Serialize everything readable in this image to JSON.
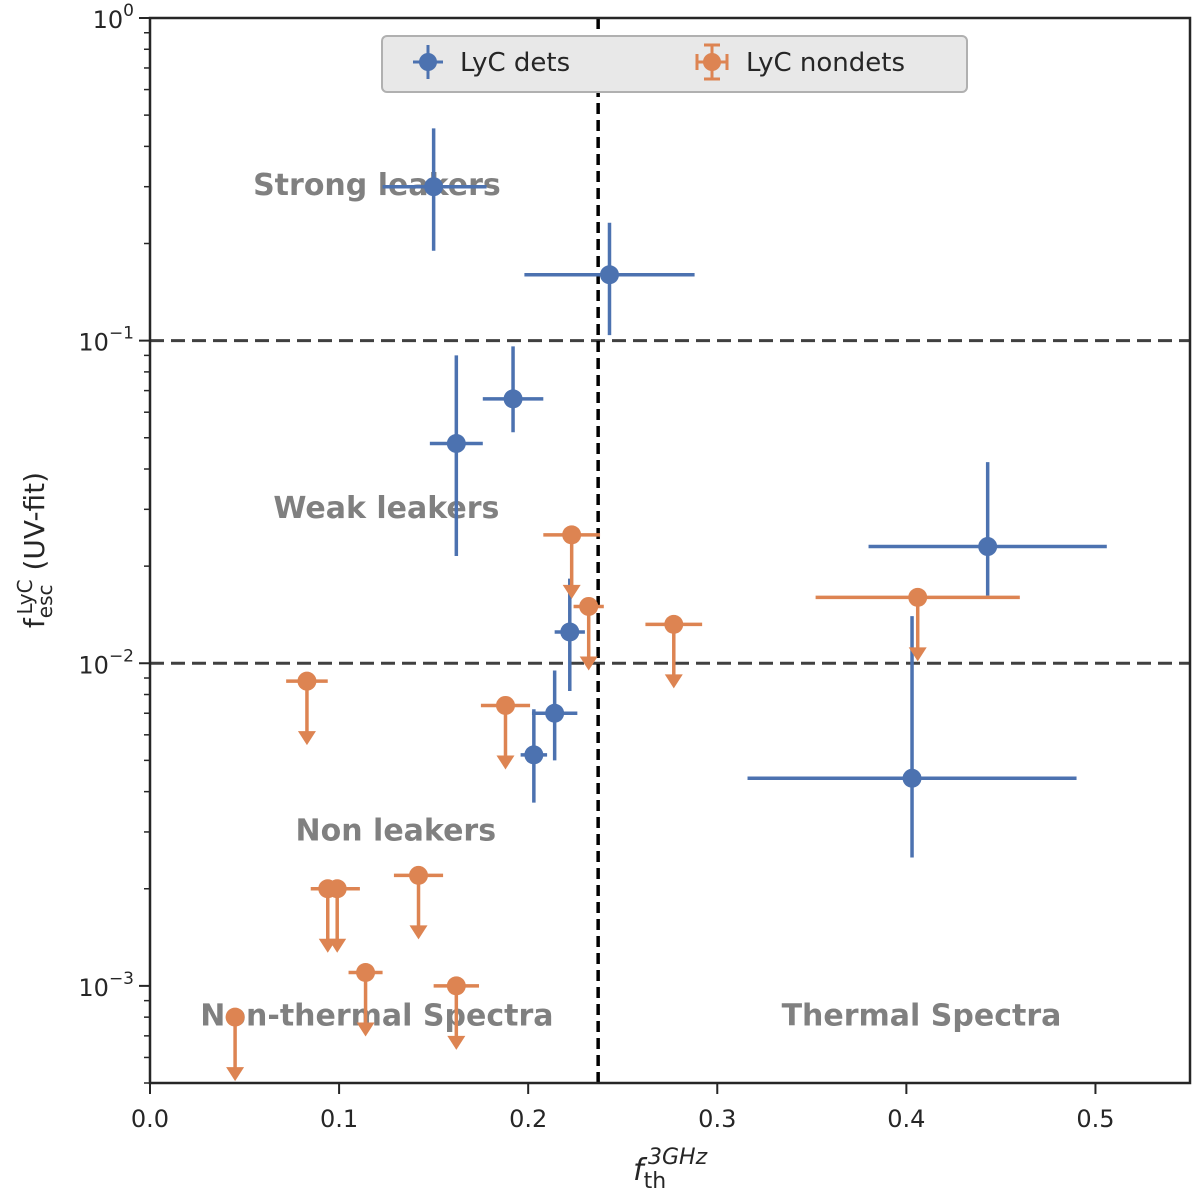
{
  "chart_data": {
    "type": "scatter",
    "xlabel": {
      "main": "f",
      "sub": "th",
      "sup": "3GHz"
    },
    "ylabel": {
      "main": "f",
      "sub": "esc",
      "sup": "LyC",
      "suffix": " (UV-fit)"
    },
    "xlim": [
      0.0,
      0.55
    ],
    "ylim": [
      0.0005,
      1.0
    ],
    "yscale": "log",
    "xticks": [
      {
        "value": 0.0,
        "label": "0.0"
      },
      {
        "value": 0.1,
        "label": "0.1"
      },
      {
        "value": 0.2,
        "label": "0.2"
      },
      {
        "value": 0.3,
        "label": "0.3"
      },
      {
        "value": 0.4,
        "label": "0.4"
      },
      {
        "value": 0.5,
        "label": "0.5"
      }
    ],
    "yticks": [
      {
        "value": 1.0,
        "base": "10",
        "exp": "0"
      },
      {
        "value": 0.1,
        "base": "10",
        "exp": "−1"
      },
      {
        "value": 0.01,
        "base": "10",
        "exp": "−2"
      },
      {
        "value": 0.001,
        "base": "10",
        "exp": "−3"
      }
    ],
    "hlines": [
      0.1,
      0.01
    ],
    "vlines": [
      0.237
    ],
    "colors": {
      "dets": "#4c72b0",
      "nondets": "#dd8452",
      "guide": "#404040",
      "region_text": "#808080"
    },
    "regions": [
      {
        "text": "Strong leakers",
        "x": 0.12,
        "y": 0.3
      },
      {
        "text": "Weak leakers",
        "x": 0.125,
        "y": 0.03
      },
      {
        "text": "Non leakers",
        "x": 0.13,
        "y": 0.003
      },
      {
        "text": "Non-thermal Spectra",
        "x": 0.12,
        "y": 0.0008
      },
      {
        "text": "Thermal Spectra",
        "x": 0.408,
        "y": 0.0008
      }
    ],
    "legend": {
      "position": "upper center",
      "entries": [
        "LyC dets",
        "LyC nondets"
      ]
    },
    "series": [
      {
        "name": "LyC dets",
        "kind": "detection",
        "points": [
          {
            "x": 0.15,
            "y": 0.3,
            "xerr": [
              0.027,
              0.028
            ],
            "yerr": [
              0.11,
              0.155
            ]
          },
          {
            "x": 0.243,
            "y": 0.16,
            "xerr": [
              0.045,
              0.045
            ],
            "yerr": [
              0.056,
              0.072
            ]
          },
          {
            "x": 0.192,
            "y": 0.066,
            "xerr": [
              0.016,
              0.016
            ],
            "yerr": [
              0.014,
              0.03
            ]
          },
          {
            "x": 0.162,
            "y": 0.048,
            "xerr": [
              0.014,
              0.014
            ],
            "yerr": [
              0.0265,
              0.042
            ]
          },
          {
            "x": 0.443,
            "y": 0.023,
            "xerr": [
              0.063,
              0.063
            ],
            "yerr": [
              0.0068,
              0.019
            ]
          },
          {
            "x": 0.222,
            "y": 0.0125,
            "xerr": [
              0.008,
              0.008
            ],
            "yerr": [
              0.0043,
              0.0058
            ]
          },
          {
            "x": 0.214,
            "y": 0.007,
            "xerr": [
              0.012,
              0.012
            ],
            "yerr": [
              0.002,
              0.0025
            ]
          },
          {
            "x": 0.203,
            "y": 0.0052,
            "xerr": [
              0.007,
              0.007
            ],
            "yerr": [
              0.0015,
              0.002
            ]
          },
          {
            "x": 0.403,
            "y": 0.0044,
            "xerr": [
              0.087,
              0.087
            ],
            "yerr": [
              0.0019,
              0.0096
            ]
          }
        ]
      },
      {
        "name": "LyC nondets",
        "kind": "upper-limit",
        "points": [
          {
            "x": 0.223,
            "y": 0.025,
            "xerr": [
              0.015,
              0.015
            ]
          },
          {
            "x": 0.232,
            "y": 0.015,
            "xerr": [
              0.008,
              0.008
            ]
          },
          {
            "x": 0.277,
            "y": 0.0132,
            "xerr": [
              0.015,
              0.015
            ]
          },
          {
            "x": 0.406,
            "y": 0.016,
            "xerr": [
              0.054,
              0.054
            ]
          },
          {
            "x": 0.083,
            "y": 0.0088,
            "xerr": [
              0.011,
              0.011
            ]
          },
          {
            "x": 0.188,
            "y": 0.0074,
            "xerr": [
              0.013,
              0.013
            ]
          },
          {
            "x": 0.142,
            "y": 0.0022,
            "xerr": [
              0.013,
              0.013
            ]
          },
          {
            "x": 0.094,
            "y": 0.002,
            "xerr": [
              0.009,
              0.009
            ]
          },
          {
            "x": 0.099,
            "y": 0.002,
            "xerr": [
              0.012,
              0.012
            ]
          },
          {
            "x": 0.114,
            "y": 0.0011,
            "xerr": [
              0.009,
              0.009
            ]
          },
          {
            "x": 0.162,
            "y": 0.001,
            "xerr": [
              0.012,
              0.012
            ]
          },
          {
            "x": 0.045,
            "y": 0.0008,
            "xerr": [
              0.002,
              0.002
            ]
          }
        ]
      }
    ]
  }
}
